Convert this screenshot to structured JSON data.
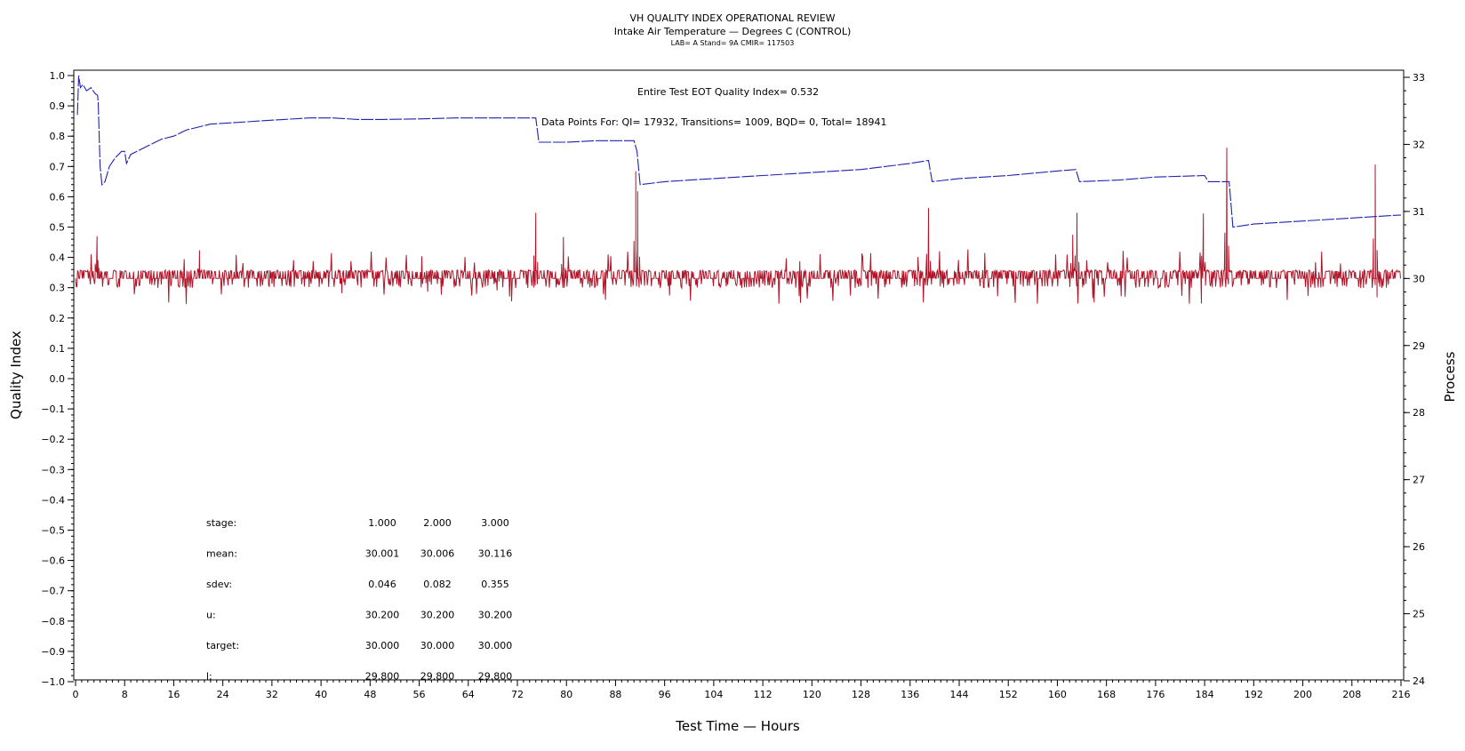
{
  "chart_data": {
    "type": "line",
    "title": "VH QUALITY INDEX OPERATIONAL REVIEW",
    "subtitle": "Intake Air Temperature — Degrees C (CONTROL)",
    "subtitle2": "LAB= A Stand= 9A CMIR= 117503",
    "xlabel": "Test Time — Hours",
    "ylabel": "Quality Index",
    "y2label": "Process",
    "xlim": [
      0,
      216
    ],
    "ylim": [
      -1.0,
      1.0
    ],
    "y2lim": [
      24,
      33
    ],
    "x_ticks": [
      "0",
      "8",
      "16",
      "24",
      "32",
      "40",
      "48",
      "56",
      "64",
      "72",
      "80",
      "88",
      "96",
      "104",
      "112",
      "120",
      "128",
      "136",
      "144",
      "152",
      "160",
      "168",
      "176",
      "184",
      "192",
      "200",
      "208",
      "216"
    ],
    "y_ticks": [
      "1.0",
      "0.9",
      "0.8",
      "0.7",
      "0.6",
      "0.5",
      "0.4",
      "0.3",
      "0.2",
      "0.1",
      "0.0",
      "−0.1",
      "−0.2",
      "−0.3",
      "−0.4",
      "−0.5",
      "−0.6",
      "−0.7",
      "−0.8",
      "−0.9",
      "−1.0"
    ],
    "y2_ticks": [
      "33",
      "32",
      "31",
      "30",
      "29",
      "28",
      "27",
      "26",
      "25",
      "24"
    ],
    "grid": false,
    "annotations": {
      "eot": "Entire Test EOT Quality Index=   0.532",
      "points": "Data Points For: QI= 17932, Transitions=  1009, BQD=    0, Total= 18941"
    },
    "stats": {
      "labels": [
        "stage:",
        "mean:",
        "sdev:",
        "u:",
        "target:",
        "l:"
      ],
      "rows": [
        [
          "1.000",
          "2.000",
          "3.000"
        ],
        [
          "30.001",
          "30.006",
          "30.116"
        ],
        [
          "0.046",
          "0.082",
          "0.355"
        ],
        [
          "30.200",
          "30.200",
          "30.200"
        ],
        [
          "30.000",
          "30.000",
          "30.000"
        ],
        [
          "29.800",
          "29.800",
          "29.800"
        ]
      ]
    },
    "series": [
      {
        "axis": "left",
        "color": "#2020b0",
        "style": "dashed-solid",
        "points": [
          [
            0.3,
            0.87
          ],
          [
            0.5,
            1.0
          ],
          [
            0.8,
            0.96
          ],
          [
            1.2,
            0.97
          ],
          [
            1.8,
            0.95
          ],
          [
            2.5,
            0.96
          ],
          [
            3.2,
            0.94
          ],
          [
            3.6,
            0.935
          ],
          [
            3.7,
            0.91
          ],
          [
            4.0,
            0.7
          ],
          [
            4.3,
            0.64
          ],
          [
            4.8,
            0.65
          ],
          [
            5.5,
            0.7
          ],
          [
            6.5,
            0.73
          ],
          [
            7.5,
            0.75
          ],
          [
            8.0,
            0.75
          ],
          [
            8.3,
            0.71
          ],
          [
            9,
            0.74
          ],
          [
            10,
            0.75
          ],
          [
            12,
            0.77
          ],
          [
            14,
            0.79
          ],
          [
            16,
            0.8
          ],
          [
            18,
            0.82
          ],
          [
            20,
            0.83
          ],
          [
            22,
            0.84
          ],
          [
            26,
            0.845
          ],
          [
            30,
            0.85
          ],
          [
            34,
            0.855
          ],
          [
            38,
            0.86
          ],
          [
            42,
            0.86
          ],
          [
            46,
            0.855
          ],
          [
            50,
            0.855
          ],
          [
            56,
            0.857
          ],
          [
            62,
            0.86
          ],
          [
            68,
            0.86
          ],
          [
            75,
            0.86
          ],
          [
            75.5,
            0.78
          ],
          [
            80,
            0.78
          ],
          [
            85,
            0.785
          ],
          [
            91,
            0.785
          ],
          [
            91.5,
            0.75
          ],
          [
            92,
            0.64
          ],
          [
            96,
            0.65
          ],
          [
            104,
            0.66
          ],
          [
            112,
            0.67
          ],
          [
            120,
            0.68
          ],
          [
            128,
            0.69
          ],
          [
            136,
            0.71
          ],
          [
            139,
            0.72
          ],
          [
            139.6,
            0.65
          ],
          [
            144,
            0.66
          ],
          [
            152,
            0.67
          ],
          [
            160,
            0.685
          ],
          [
            163,
            0.69
          ],
          [
            163.6,
            0.65
          ],
          [
            170,
            0.655
          ],
          [
            176,
            0.665
          ],
          [
            184,
            0.67
          ],
          [
            184.6,
            0.65
          ],
          [
            188,
            0.65
          ],
          [
            188.6,
            0.5
          ],
          [
            192,
            0.51
          ],
          [
            200,
            0.52
          ],
          [
            208,
            0.53
          ],
          [
            212,
            0.535
          ],
          [
            216,
            0.54
          ]
        ]
      },
      {
        "axis": "right",
        "color": "#b01428",
        "style": "noisy-around",
        "baseline": 30.0,
        "noise": 0.11,
        "spikes": [
          [
            3.5,
            30.63
          ],
          [
            20.2,
            30.42
          ],
          [
            43.4,
            29.78
          ],
          [
            57.4,
            29.8
          ],
          [
            68.7,
            29.82
          ],
          [
            75.0,
            30.98
          ],
          [
            79.5,
            30.62
          ],
          [
            91.3,
            31.6
          ],
          [
            91.6,
            31.3
          ],
          [
            139.0,
            31.05
          ],
          [
            162.5,
            30.65
          ],
          [
            163.2,
            30.98
          ],
          [
            183.8,
            30.97
          ],
          [
            187.6,
            31.95
          ],
          [
            211.8,
            31.7
          ],
          [
            212.1,
            29.72
          ]
        ]
      }
    ]
  }
}
